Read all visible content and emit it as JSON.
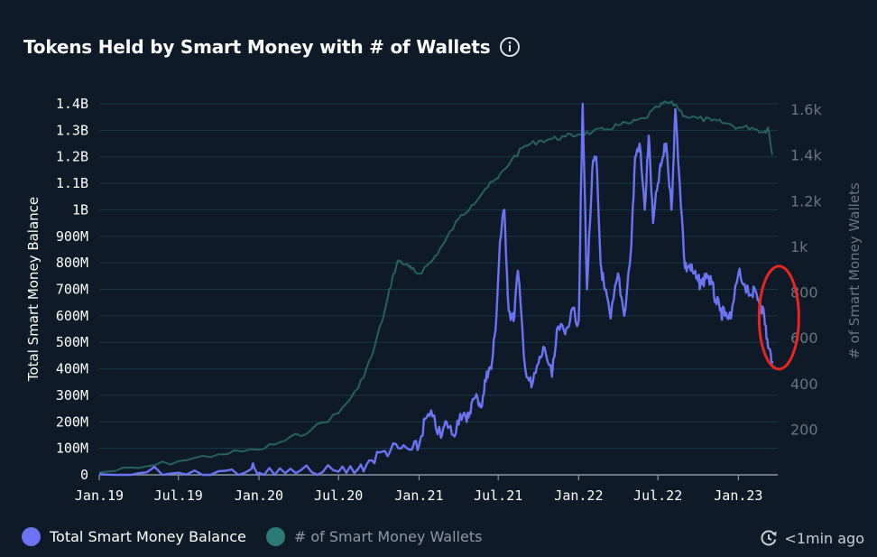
{
  "header": {
    "title": "Tokens Held by Smart Money with # of Wallets",
    "info_icon": "info-circle-icon"
  },
  "colors": {
    "background": "#0e1a28",
    "balance_line": "#6b74f2",
    "wallets_line": "#23625f",
    "grid": "#1a3a45",
    "annotation": "#e8251e"
  },
  "legend": [
    {
      "label": "Total Smart Money Balance",
      "color": "#6b74f2"
    },
    {
      "label": "# of Smart Money Wallets",
      "color": "#2b7a76"
    }
  ],
  "status": {
    "updated_label": "<1min ago",
    "icon": "refresh-clock-icon"
  },
  "chart_data": {
    "type": "line",
    "title": "Tokens Held by Smart Money with # of Wallets",
    "x_axis": {
      "type": "date",
      "range": [
        "2019-01-01",
        "2023-04-01"
      ],
      "tick_labels": [
        "Jan.19",
        "Jul.19",
        "Jan.20",
        "Jul.20",
        "Jan.21",
        "Jul.21",
        "Jan.22",
        "Jul.22",
        "Jan.23"
      ],
      "tick_dates": [
        "2019-01-01",
        "2019-07-01",
        "2020-01-01",
        "2020-07-01",
        "2021-01-01",
        "2021-07-01",
        "2022-01-01",
        "2022-07-01",
        "2023-01-01"
      ]
    },
    "y_left": {
      "label": "Total Smart Money Balance",
      "range": [
        0,
        1400000000
      ],
      "ticks": [
        0,
        100000000,
        200000000,
        300000000,
        400000000,
        500000000,
        600000000,
        700000000,
        800000000,
        900000000,
        1000000000,
        1100000000,
        1200000000,
        1300000000,
        1400000000
      ],
      "tick_labels": [
        "0",
        "100M",
        "200M",
        "300M",
        "400M",
        "500M",
        "600M",
        "700M",
        "800M",
        "900M",
        "1B",
        "1.1B",
        "1.2B",
        "1.3B",
        "1.4B"
      ]
    },
    "y_right": {
      "label": "# of Smart Money Wallets",
      "range": [
        0,
        1600
      ],
      "ticks": [
        200,
        400,
        600,
        800,
        1000,
        1200,
        1400,
        1600
      ],
      "tick_labels": [
        "200",
        "400",
        "600",
        "800",
        "1k",
        "1.2k",
        "1.4k",
        "1.6k"
      ]
    },
    "grid": true,
    "legend_position": "bottom-left",
    "series": [
      {
        "name": "Total Smart Money Balance",
        "axis": "left",
        "color": "#6b74f2",
        "x": [
          "2019-01-01",
          "2019-04-01",
          "2019-07-01",
          "2019-10-01",
          "2019-12-15",
          "2020-01-01",
          "2020-03-01",
          "2020-05-01",
          "2020-07-01",
          "2020-08-15",
          "2020-09-15",
          "2020-10-15",
          "2020-11-15",
          "2020-12-15",
          "2021-01-01",
          "2021-01-15",
          "2021-02-01",
          "2021-02-20",
          "2021-03-05",
          "2021-03-20",
          "2021-04-05",
          "2021-04-20",
          "2021-05-01",
          "2021-05-15",
          "2021-05-25",
          "2021-06-05",
          "2021-06-15",
          "2021-06-25",
          "2021-07-05",
          "2021-07-15",
          "2021-07-25",
          "2021-08-05",
          "2021-08-15",
          "2021-09-01",
          "2021-09-15",
          "2021-10-01",
          "2021-10-15",
          "2021-11-01",
          "2021-11-15",
          "2021-12-01",
          "2021-12-15",
          "2022-01-01",
          "2022-01-05",
          "2022-01-10",
          "2022-01-20",
          "2022-02-01",
          "2022-02-10",
          "2022-02-20",
          "2022-03-01",
          "2022-03-15",
          "2022-04-01",
          "2022-04-15",
          "2022-05-01",
          "2022-05-10",
          "2022-05-20",
          "2022-06-01",
          "2022-06-10",
          "2022-06-20",
          "2022-07-01",
          "2022-07-10",
          "2022-07-20",
          "2022-08-01",
          "2022-08-10",
          "2022-08-20",
          "2022-09-01",
          "2022-09-10",
          "2022-09-20",
          "2022-10-01",
          "2022-10-10",
          "2022-10-20",
          "2022-11-01",
          "2022-11-10",
          "2022-11-20",
          "2022-12-01",
          "2022-12-15",
          "2023-01-01",
          "2023-01-15",
          "2023-02-01",
          "2023-02-10",
          "2023-02-20",
          "2023-03-01",
          "2023-03-10",
          "2023-03-20"
        ],
        "values": [
          3000000,
          6000000,
          8000000,
          14000000,
          22000000,
          8000000,
          6000000,
          10000000,
          12000000,
          22000000,
          55000000,
          90000000,
          100000000,
          95000000,
          110000000,
          210000000,
          220000000,
          140000000,
          200000000,
          150000000,
          230000000,
          200000000,
          270000000,
          290000000,
          260000000,
          390000000,
          400000000,
          550000000,
          880000000,
          1000000000,
          620000000,
          580000000,
          770000000,
          400000000,
          330000000,
          420000000,
          480000000,
          370000000,
          560000000,
          530000000,
          620000000,
          580000000,
          950000000,
          1400000000,
          700000000,
          1150000000,
          1200000000,
          800000000,
          700000000,
          590000000,
          760000000,
          600000000,
          860000000,
          1200000000,
          1250000000,
          1000000000,
          1280000000,
          950000000,
          1100000000,
          1180000000,
          1250000000,
          1000000000,
          1380000000,
          1100000000,
          780000000,
          790000000,
          760000000,
          730000000,
          720000000,
          760000000,
          720000000,
          660000000,
          620000000,
          600000000,
          590000000,
          760000000,
          720000000,
          680000000,
          690000000,
          650000000,
          600000000,
          480000000,
          430000000
        ]
      },
      {
        "name": "# of Smart Money Wallets",
        "axis": "right",
        "color": "#23625f",
        "x": [
          "2019-01-01",
          "2019-04-01",
          "2019-07-01",
          "2019-10-01",
          "2020-01-01",
          "2020-03-01",
          "2020-05-01",
          "2020-07-01",
          "2020-08-15",
          "2020-09-15",
          "2020-10-15",
          "2020-11-01",
          "2020-11-15",
          "2020-12-01",
          "2020-12-15",
          "2021-01-01",
          "2021-02-01",
          "2021-03-01",
          "2021-04-01",
          "2021-05-01",
          "2021-06-01",
          "2021-07-01",
          "2021-08-01",
          "2021-09-01",
          "2021-10-01",
          "2021-11-01",
          "2021-12-01",
          "2022-01-01",
          "2022-02-01",
          "2022-03-01",
          "2022-04-01",
          "2022-05-01",
          "2022-06-01",
          "2022-07-01",
          "2022-07-20",
          "2022-08-10",
          "2022-09-01",
          "2022-10-01",
          "2022-11-01",
          "2022-12-01",
          "2023-01-01",
          "2023-02-01",
          "2023-03-01",
          "2023-03-10",
          "2023-03-20"
        ],
        "values": [
          10,
          30,
          60,
          90,
          110,
          150,
          200,
          270,
          380,
          520,
          720,
          860,
          940,
          920,
          900,
          880,
          940,
          1020,
          1120,
          1180,
          1250,
          1300,
          1380,
          1440,
          1460,
          1470,
          1480,
          1490,
          1500,
          1510,
          1530,
          1540,
          1560,
          1610,
          1630,
          1620,
          1570,
          1560,
          1550,
          1540,
          1520,
          1520,
          1500,
          1520,
          1400
        ]
      }
    ],
    "annotations": [
      {
        "shape": "ellipse",
        "color": "#e8251e",
        "around_date": "2023-03-10",
        "around_value_left": 600000000
      }
    ]
  }
}
